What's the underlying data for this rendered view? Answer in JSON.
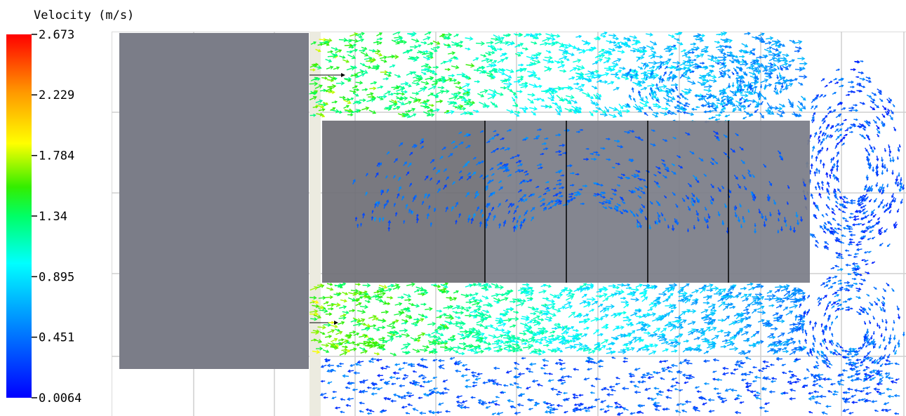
{
  "chart_data": {
    "type": "vector-field",
    "colorbar": {
      "title": "Velocity (m/s)",
      "min": 0.0064,
      "max": 2.673,
      "ticks": [
        {
          "value": 2.673,
          "label": "2.673"
        },
        {
          "value": 2.229,
          "label": "2.229"
        },
        {
          "value": 1.784,
          "label": "1.784"
        },
        {
          "value": 1.34,
          "label": "1.34"
        },
        {
          "value": 0.895,
          "label": "0.895"
        },
        {
          "value": 0.451,
          "label": "0.451"
        },
        {
          "value": 0.0064,
          "label": "0.0064"
        }
      ],
      "colors": [
        "#0000ff",
        "#00aaff",
        "#00ffff",
        "#00ff66",
        "#33ee00",
        "#ffff00",
        "#ff9900",
        "#ff0000"
      ]
    },
    "solid_color": "#7b7d88",
    "grid_color": "#cfcfcf",
    "flow_regions": [
      {
        "region": "upper-channel",
        "speed_range": [
          0.6,
          1.5
        ]
      },
      {
        "region": "lower-channel",
        "speed_range": [
          0.6,
          1.6
        ]
      },
      {
        "region": "inside-block",
        "speed_range": [
          0.1,
          0.6
        ]
      },
      {
        "region": "right-vortex",
        "speed_range": [
          0.1,
          0.7
        ]
      },
      {
        "region": "bottom-recirculation",
        "speed_range": [
          0.1,
          0.6
        ]
      }
    ]
  }
}
